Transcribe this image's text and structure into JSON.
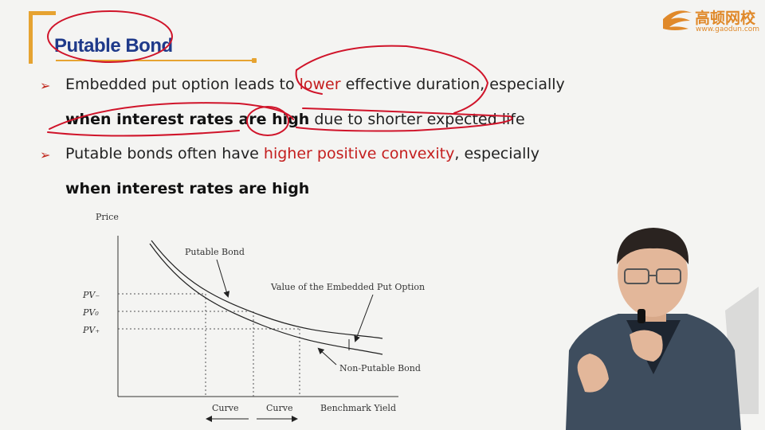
{
  "slide": {
    "title": "Putable Bond",
    "logo": {
      "name": "高顿网校",
      "url": "www.gaodun.com"
    },
    "bullets": [
      {
        "line1_a": "Embedded put option leads to ",
        "line1_red": "lower",
        "line1_b": " effective duration, especially",
        "line2_bold": "when interest rates are high",
        "line2_rest": " due to shorter expected life"
      },
      {
        "line1_a": "Putable bonds often have ",
        "line1_red": "higher positive convexity",
        "line1_b": ", especially",
        "line2_bold": "when interest rates are high"
      }
    ]
  },
  "chart_data": {
    "type": "line",
    "title": "",
    "ylabel": "Price",
    "xlabel": "Benchmark Yield",
    "y_ticks": [
      "PV₋",
      "PV₀",
      "PV₊"
    ],
    "curve_labels": [
      "Curve",
      "Curve"
    ],
    "series": [
      {
        "name": "Putable Bond"
      },
      {
        "name": "Non-Putable Bond"
      }
    ],
    "annotation": "Value of the Embedded Put Option"
  },
  "colors": {
    "accent_orange": "#e6a331",
    "title_blue": "#1f3a8a",
    "emphasis_red": "#c41e1e",
    "ink_red": "#d0142a"
  }
}
